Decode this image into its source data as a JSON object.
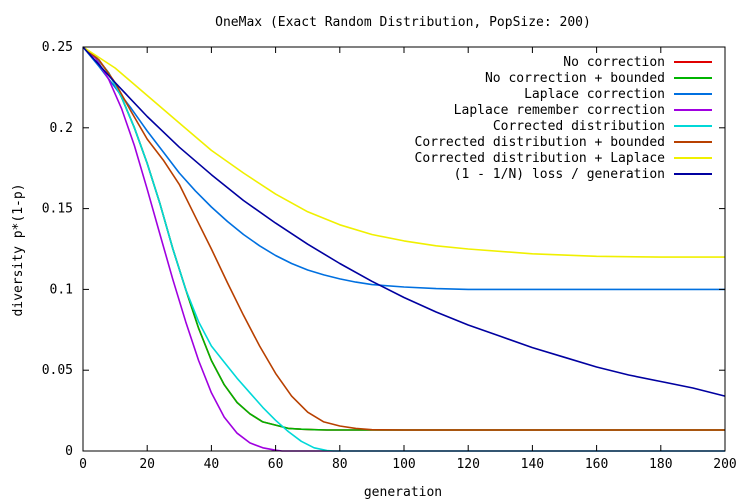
{
  "chart_data": {
    "type": "line",
    "title": "OneMax (Exact Random Distribution, PopSize: 200)",
    "xlabel": "generation",
    "ylabel": "diversity p*(1-p)",
    "xlim": [
      0,
      200
    ],
    "ylim": [
      0,
      0.25
    ],
    "xticks": [
      0,
      20,
      40,
      60,
      80,
      100,
      120,
      140,
      160,
      180,
      200
    ],
    "yticks": [
      0,
      0.05,
      0.1,
      0.15,
      0.2,
      0.25
    ],
    "grid": false,
    "legend_position": "top-right",
    "series": [
      {
        "name": "No correction",
        "color": "#e00000",
        "x": [
          0,
          4,
          8,
          12,
          16,
          20,
          24,
          28,
          32,
          36,
          40,
          44,
          48,
          52,
          56,
          60,
          64,
          68,
          72,
          76,
          80,
          90,
          100,
          120,
          140,
          160,
          180,
          200
        ],
        "y": [
          0.25,
          0.244,
          0.234,
          0.219,
          0.2,
          0.178,
          0.153,
          0.125,
          0.1,
          0.076,
          0.056,
          0.041,
          0.03,
          0.023,
          0.018,
          0.016,
          0.014,
          0.0135,
          0.0132,
          0.013,
          0.013,
          0.013,
          0.013,
          0.013,
          0.013,
          0.013,
          0.013,
          0.013
        ]
      },
      {
        "name": "No correction + bounded",
        "color": "#00b400",
        "x": [
          0,
          4,
          8,
          12,
          16,
          20,
          24,
          28,
          32,
          36,
          40,
          44,
          48,
          52,
          56,
          60,
          64,
          68,
          72,
          76,
          80,
          90,
          100,
          120,
          140,
          160,
          180,
          200
        ],
        "y": [
          0.25,
          0.244,
          0.234,
          0.219,
          0.2,
          0.178,
          0.153,
          0.125,
          0.1,
          0.076,
          0.056,
          0.041,
          0.03,
          0.023,
          0.018,
          0.016,
          0.014,
          0.0135,
          0.0132,
          0.013,
          0.013,
          0.013,
          0.013,
          0.013,
          0.013,
          0.013,
          0.013,
          0.013
        ]
      },
      {
        "name": "Laplace correction",
        "color": "#0070e0",
        "x": [
          0,
          5,
          10,
          15,
          20,
          25,
          30,
          35,
          40,
          45,
          50,
          55,
          60,
          65,
          70,
          75,
          80,
          85,
          90,
          100,
          110,
          120,
          140,
          160,
          180,
          200
        ],
        "y": [
          0.25,
          0.238,
          0.225,
          0.212,
          0.198,
          0.185,
          0.172,
          0.161,
          0.151,
          0.142,
          0.134,
          0.127,
          0.121,
          0.116,
          0.112,
          0.109,
          0.1065,
          0.1045,
          0.103,
          0.1015,
          0.1005,
          0.1,
          0.1,
          0.1,
          0.1,
          0.1
        ]
      },
      {
        "name": "Laplace remember correction",
        "color": "#a000e0",
        "x": [
          0,
          4,
          8,
          12,
          16,
          20,
          24,
          28,
          32,
          36,
          40,
          44,
          48,
          52,
          56,
          60,
          62,
          64,
          80,
          100,
          120,
          140,
          160,
          180,
          200
        ],
        "y": [
          0.25,
          0.243,
          0.23,
          0.212,
          0.189,
          0.162,
          0.134,
          0.106,
          0.08,
          0.056,
          0.036,
          0.021,
          0.011,
          0.005,
          0.002,
          0.0005,
          0.0,
          0.0,
          0.0,
          0.0,
          0.0,
          0.0,
          0.0,
          0.0,
          0.0
        ]
      },
      {
        "name": "Corrected distribution",
        "color": "#00d8d8",
        "x": [
          0,
          4,
          8,
          12,
          16,
          20,
          24,
          28,
          32,
          36,
          40,
          44,
          48,
          52,
          56,
          60,
          64,
          68,
          72,
          76,
          78,
          80,
          100,
          120,
          140,
          160,
          180,
          200
        ],
        "y": [
          0.25,
          0.244,
          0.234,
          0.219,
          0.2,
          0.178,
          0.153,
          0.125,
          0.1,
          0.08,
          0.065,
          0.055,
          0.045,
          0.036,
          0.027,
          0.019,
          0.012,
          0.006,
          0.002,
          0.0003,
          0.0,
          0.0,
          0.0,
          0.0,
          0.0,
          0.0,
          0.0,
          0.0
        ]
      },
      {
        "name": "Corrected distribution + bounded",
        "color": "#b84000",
        "x": [
          0,
          5,
          10,
          15,
          20,
          25,
          30,
          35,
          40,
          45,
          50,
          55,
          60,
          65,
          70,
          75,
          80,
          85,
          90,
          100,
          120,
          140,
          160,
          180,
          200
        ],
        "y": [
          0.25,
          0.242,
          0.228,
          0.21,
          0.193,
          0.18,
          0.165,
          0.145,
          0.125,
          0.104,
          0.084,
          0.065,
          0.048,
          0.034,
          0.024,
          0.018,
          0.0155,
          0.014,
          0.0132,
          0.013,
          0.013,
          0.013,
          0.013,
          0.013,
          0.013
        ]
      },
      {
        "name": "Corrected distribution + Laplace",
        "color": "#f0f000",
        "x": [
          0,
          10,
          20,
          30,
          40,
          50,
          60,
          70,
          80,
          90,
          100,
          110,
          120,
          140,
          160,
          180,
          200
        ],
        "y": [
          0.25,
          0.237,
          0.22,
          0.203,
          0.186,
          0.172,
          0.159,
          0.148,
          0.14,
          0.134,
          0.13,
          0.127,
          0.125,
          0.122,
          0.1205,
          0.12,
          0.12
        ]
      },
      {
        "name": "(1 - 1/N) loss / generation",
        "color": "#0000a0",
        "x": [
          0,
          10,
          20,
          30,
          40,
          50,
          60,
          70,
          80,
          90,
          100,
          110,
          120,
          130,
          140,
          150,
          160,
          170,
          180,
          190,
          200
        ],
        "y": [
          0.25,
          0.228,
          0.207,
          0.188,
          0.171,
          0.155,
          0.141,
          0.128,
          0.116,
          0.105,
          0.095,
          0.086,
          0.078,
          0.071,
          0.064,
          0.058,
          0.052,
          0.047,
          0.043,
          0.039,
          0.034
        ]
      }
    ]
  }
}
